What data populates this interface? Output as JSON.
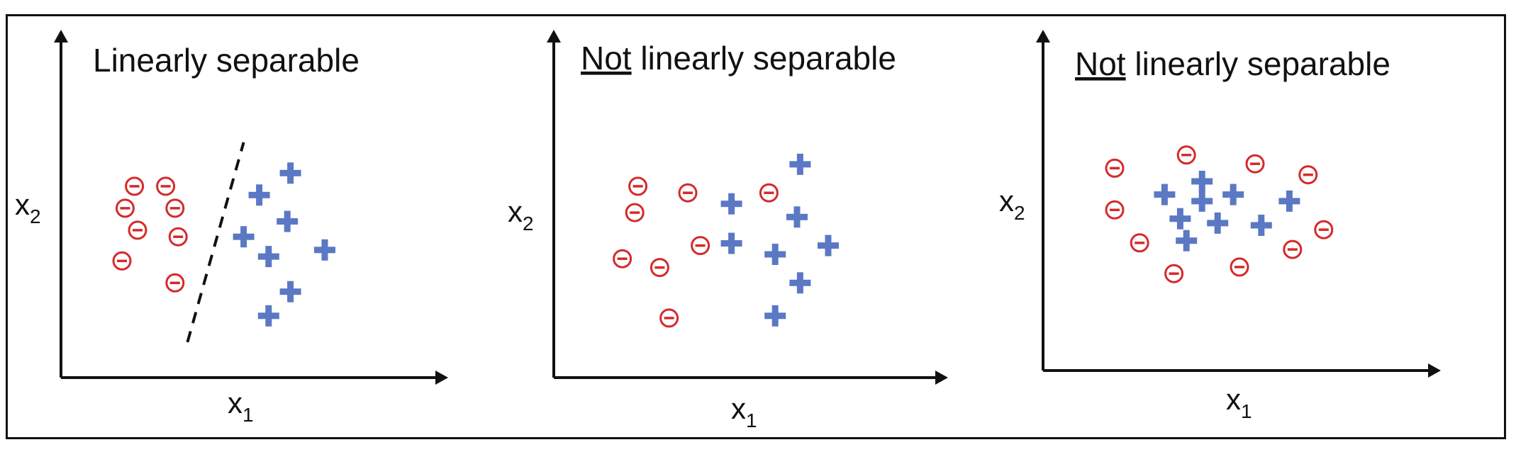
{
  "colors": {
    "negative": "#d42a2a",
    "positive": "#5b78c4",
    "axis": "#111111"
  },
  "symbols": {
    "negative_icon": "circled-minus-icon",
    "positive_icon": "plus-icon"
  },
  "panels": [
    {
      "title_prefix": "",
      "title_rest": "Linearly separable",
      "x_label": "x",
      "x_sub": "1",
      "y_label": "x",
      "y_sub": "2",
      "negatives": [
        [
          0.19,
          0.29
        ],
        [
          0.29,
          0.29
        ],
        [
          0.16,
          0.39
        ],
        [
          0.32,
          0.39
        ],
        [
          0.2,
          0.49
        ],
        [
          0.33,
          0.52
        ],
        [
          0.15,
          0.63
        ],
        [
          0.32,
          0.73
        ]
      ],
      "positives": [
        [
          0.69,
          0.23
        ],
        [
          0.59,
          0.33
        ],
        [
          0.68,
          0.45
        ],
        [
          0.54,
          0.52
        ],
        [
          0.62,
          0.61
        ],
        [
          0.8,
          0.58
        ],
        [
          0.69,
          0.77
        ],
        [
          0.62,
          0.88
        ]
      ],
      "boundary": [
        [
          0.36,
          1.0
        ],
        [
          0.54,
          0.09
        ]
      ]
    },
    {
      "title_prefix": "Not",
      "title_rest": " linearly separable",
      "x_label": "x",
      "x_sub": "1",
      "y_label": "x",
      "y_sub": "2",
      "negatives": [
        [
          0.19,
          0.29
        ],
        [
          0.35,
          0.32
        ],
        [
          0.61,
          0.32
        ],
        [
          0.18,
          0.41
        ],
        [
          0.39,
          0.56
        ],
        [
          0.14,
          0.62
        ],
        [
          0.26,
          0.66
        ],
        [
          0.29,
          0.89
        ]
      ],
      "positives": [
        [
          0.71,
          0.19
        ],
        [
          0.49,
          0.37
        ],
        [
          0.7,
          0.43
        ],
        [
          0.49,
          0.55
        ],
        [
          0.8,
          0.56
        ],
        [
          0.63,
          0.6
        ],
        [
          0.71,
          0.73
        ],
        [
          0.63,
          0.88
        ]
      ],
      "boundary": null
    },
    {
      "title_prefix": "Not",
      "title_rest": " linearly separable",
      "x_label": "x",
      "x_sub": "1",
      "y_label": "x",
      "y_sub": "2",
      "negatives": [
        [
          0.15,
          0.24
        ],
        [
          0.38,
          0.18
        ],
        [
          0.6,
          0.22
        ],
        [
          0.77,
          0.27
        ],
        [
          0.15,
          0.43
        ],
        [
          0.82,
          0.52
        ],
        [
          0.23,
          0.58
        ],
        [
          0.72,
          0.61
        ],
        [
          0.34,
          0.72
        ],
        [
          0.55,
          0.69
        ]
      ],
      "positives": [
        [
          0.43,
          0.3
        ],
        [
          0.31,
          0.36
        ],
        [
          0.43,
          0.39
        ],
        [
          0.53,
          0.36
        ],
        [
          0.36,
          0.47
        ],
        [
          0.48,
          0.49
        ],
        [
          0.71,
          0.39
        ],
        [
          0.62,
          0.5
        ],
        [
          0.38,
          0.57
        ]
      ],
      "boundary": null
    }
  ]
}
